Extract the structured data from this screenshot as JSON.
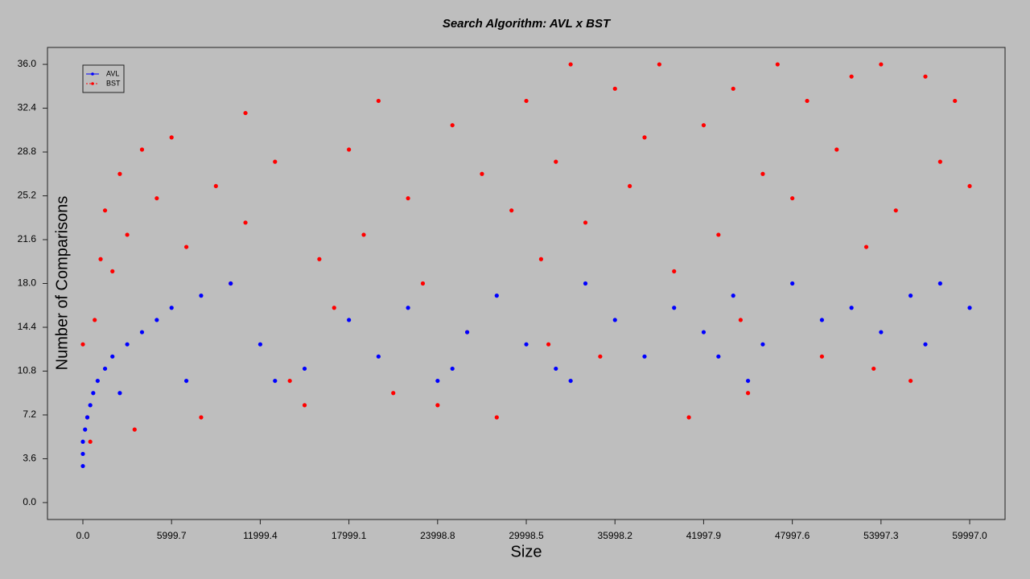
{
  "chart_data": {
    "type": "scatter",
    "title": "Search Algorithm: AVL x BST",
    "x_label": "Size",
    "y_label": "Number of Comparisons",
    "xlim": [
      -2395,
      62390
    ],
    "ylim": [
      -1.39,
      37.39
    ],
    "xticks": [
      {
        "value": 0,
        "label": "0.0"
      },
      5999.7,
      11999.4,
      17999.1,
      23998.8,
      29998.5,
      35998.2,
      41997.9,
      47997.6,
      53997.3,
      {
        "value": 59997,
        "label": "59997.0"
      }
    ],
    "yticks": [
      {
        "value": 0,
        "label": "0.0"
      },
      3.6,
      7.2,
      10.8,
      14.4,
      {
        "value": 18,
        "label": "18.0"
      },
      21.6,
      25.2,
      28.8,
      32.4,
      {
        "value": 36,
        "label": "36.0"
      }
    ],
    "legend": "upper left",
    "series": [
      {
        "name": "AVL",
        "color": "#0000ff",
        "x": [
          0,
          0,
          0,
          150,
          300,
          500,
          700,
          1000,
          1500,
          2000,
          3000,
          4000,
          5000,
          6000,
          8000,
          10000,
          12000,
          15000,
          18000,
          20000,
          22000,
          24000,
          26000,
          28000,
          30000,
          32000,
          34000,
          36000,
          38000,
          40000,
          42000,
          44000,
          46000,
          48000,
          50000,
          52000,
          54000,
          56000,
          58000,
          59997,
          2500,
          7000,
          13000,
          45000,
          33000,
          25000,
          43000,
          57000
        ],
        "values": [
          3,
          4,
          5,
          6,
          7,
          8,
          9,
          10,
          11,
          12,
          13,
          14,
          15,
          16,
          17,
          18,
          13,
          11,
          15,
          12,
          16,
          10,
          14,
          17,
          13,
          11,
          18,
          15,
          12,
          16,
          14,
          17,
          13,
          18,
          15,
          16,
          14,
          17,
          18,
          16,
          9,
          10,
          10,
          10,
          10,
          11,
          12,
          13
        ]
      },
      {
        "name": "BST",
        "color": "#ff0000",
        "x": [
          0,
          300,
          500,
          800,
          1200,
          1500,
          2000,
          2500,
          3000,
          3500,
          4000,
          5000,
          6000,
          7000,
          8000,
          9000,
          10000,
          11000,
          11000,
          13000,
          14000,
          15000,
          16000,
          18000,
          19000,
          20000,
          21000,
          22000,
          23000,
          24000,
          25000,
          26000,
          27000,
          28000,
          29000,
          30000,
          31000,
          32000,
          33000,
          34000,
          35000,
          36000,
          37000,
          38000,
          39000,
          40000,
          41000,
          42000,
          43000,
          44000,
          45000,
          46000,
          47000,
          48000,
          49000,
          50000,
          51000,
          52000,
          53000,
          54000,
          55000,
          56000,
          57000,
          58000,
          59000,
          59997,
          17000,
          31500,
          44500,
          53500
        ],
        "values": [
          13,
          7,
          5,
          15,
          20,
          24,
          19,
          27,
          22,
          6,
          29,
          25,
          30,
          21,
          7,
          26,
          18,
          23,
          32,
          28,
          10,
          8,
          20,
          29,
          22,
          33,
          9,
          25,
          18,
          8,
          31,
          14,
          27,
          7,
          24,
          33,
          20,
          28,
          36,
          23,
          12,
          34,
          26,
          30,
          36,
          19,
          7,
          31,
          22,
          34,
          9,
          27,
          36,
          25,
          33,
          12,
          29,
          35,
          21,
          36,
          24,
          10,
          35,
          28,
          33,
          26,
          16,
          13,
          15,
          11
        ]
      }
    ]
  }
}
